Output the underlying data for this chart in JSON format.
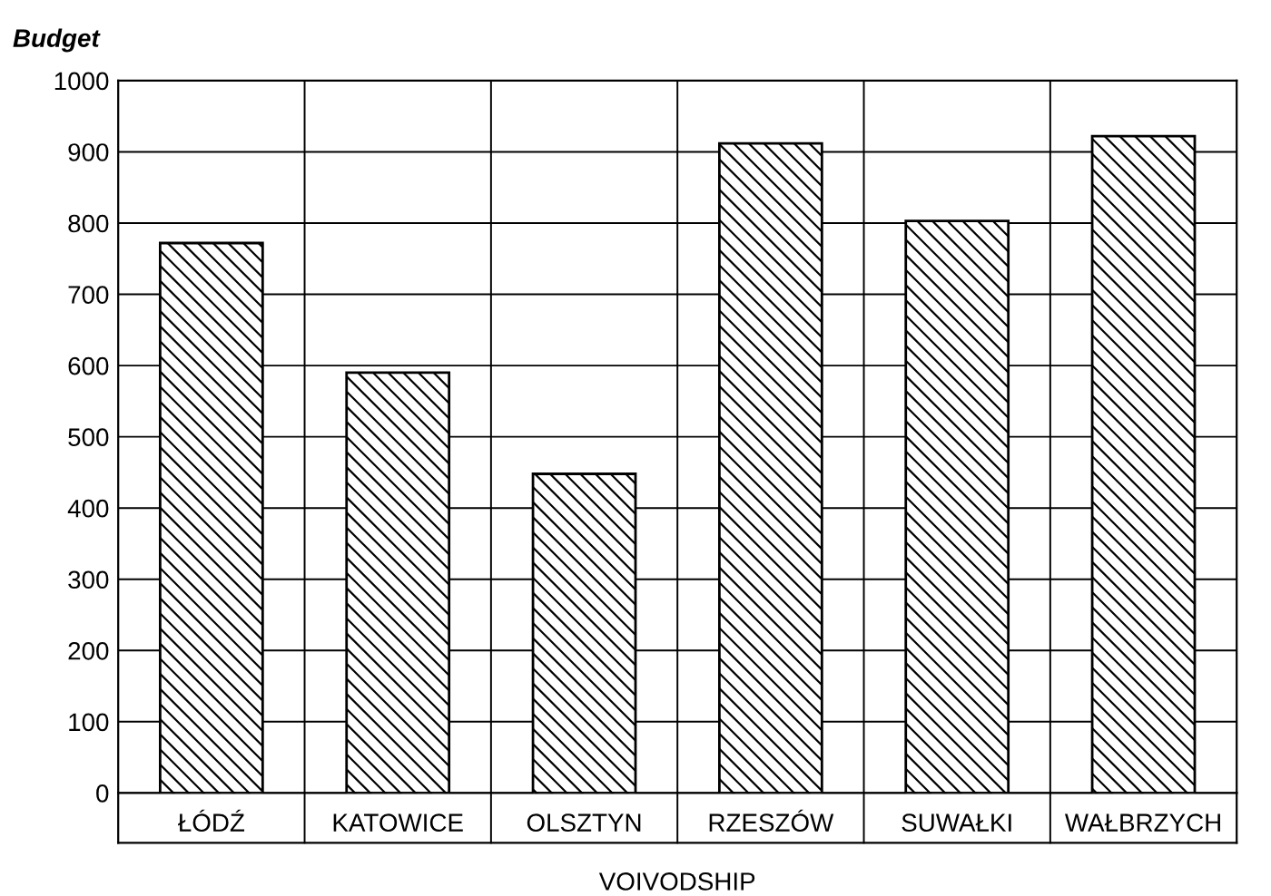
{
  "chart_data": {
    "type": "bar",
    "ylabel": "Budget",
    "xlabel": "VOIVODSHIP",
    "categories": [
      "ŁÓDŹ",
      "KATOWICE",
      "OLSZTYN",
      "RZESZÓW",
      "SUWAŁKI",
      "WAŁBRZYCH"
    ],
    "values": [
      772,
      590,
      448,
      912,
      803,
      922
    ],
    "color": "#000000",
    "ylim": [
      0,
      1000
    ],
    "yticks": [
      0,
      100,
      200,
      300,
      400,
      500,
      600,
      700,
      800,
      900,
      1000
    ],
    "grid": true
  }
}
